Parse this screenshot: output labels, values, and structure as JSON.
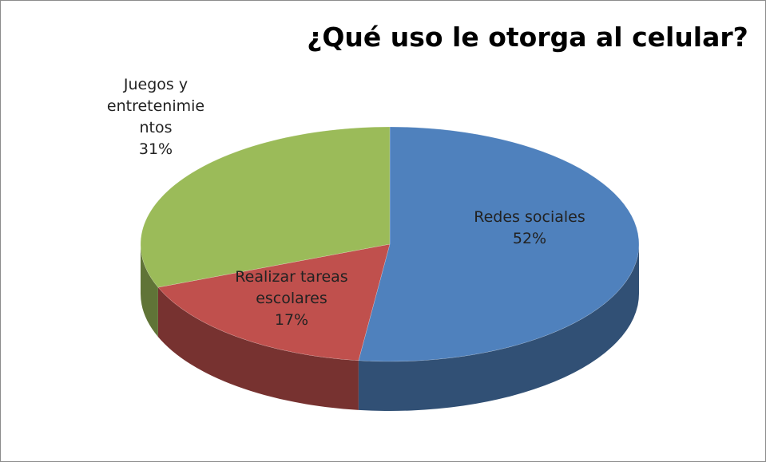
{
  "chart_data": {
    "type": "pie",
    "title": "¿Qué uso le otorga al celular?",
    "categories": [
      "Redes sociales",
      "Realizar tareas escolares",
      "Juegos y entretenimientos"
    ],
    "values": [
      52,
      17,
      31
    ],
    "value_labels": [
      "52%",
      "17%",
      "31%"
    ],
    "colors": [
      "#4f81bd",
      "#c0504d",
      "#9bbb59"
    ]
  }
}
